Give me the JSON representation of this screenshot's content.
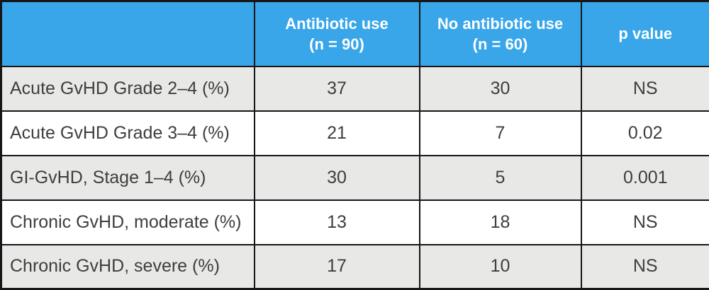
{
  "colors": {
    "header_bg": "#39a6e9",
    "header_text": "#ffffff",
    "row_shaded_bg": "#e8e8e7",
    "row_plain_bg": "#ffffff",
    "border": "#161616",
    "body_text": "#3e3e3e"
  },
  "chart_data": {
    "type": "table",
    "corner_label": "",
    "columns": [
      {
        "label": "Antibiotic use",
        "sub": "(n = 90)"
      },
      {
        "label": "No antibiotic use",
        "sub": "(n = 60)"
      },
      {
        "label": "p value",
        "sub": ""
      }
    ],
    "rows": [
      {
        "label": "Acute GvHD Grade 2–4 (%)",
        "values": [
          "37",
          "30",
          "NS"
        ]
      },
      {
        "label": "Acute GvHD Grade 3–4 (%)",
        "values": [
          "21",
          "7",
          "0.02"
        ]
      },
      {
        "label": "GI-GvHD, Stage 1–4 (%)",
        "values": [
          "30",
          "5",
          "0.001"
        ]
      },
      {
        "label": "Chronic GvHD, moderate (%)",
        "values": [
          "13",
          "18",
          "NS"
        ]
      },
      {
        "label": "Chronic GvHD, severe (%)",
        "values": [
          "17",
          "10",
          "NS"
        ]
      }
    ]
  }
}
